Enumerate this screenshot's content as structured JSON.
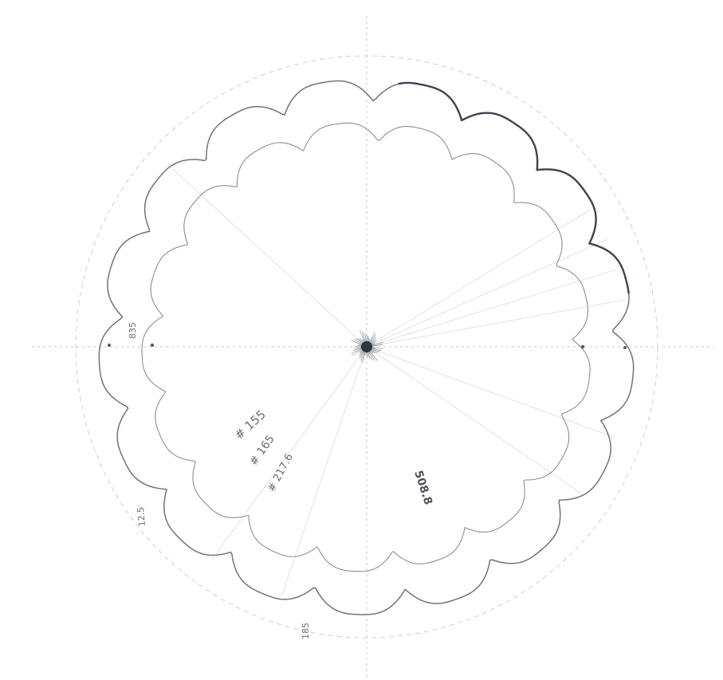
{
  "labels": {
    "l1": "# 155",
    "l2": "# 165",
    "l3": "# 217.6",
    "l4": "508.8",
    "l5": "835",
    "l6": "12.5",
    "l7": "185"
  },
  "colors": {
    "ink_dark": "#3d4350",
    "ink_mid": "#6e7380",
    "ink_light": "#8a8f98",
    "axis": "#c9c9c9",
    "background": "#ffffff"
  }
}
